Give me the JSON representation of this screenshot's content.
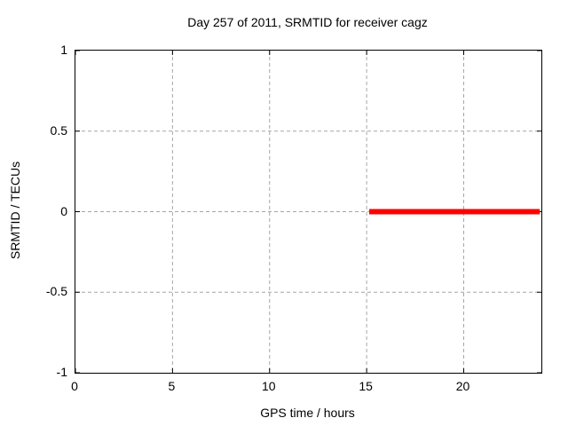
{
  "page": {
    "background": "#ffffff"
  },
  "chart_data": {
    "type": "line",
    "title": "Day 257 of 2011, SRMTID for receiver cagz",
    "xlabel": "GPS time / hours",
    "ylabel": "SRMTID / TECUs",
    "xlim": [
      0,
      24
    ],
    "ylim": [
      -1,
      1
    ],
    "xticks": {
      "values": [
        0,
        5,
        10,
        15,
        20
      ],
      "labels": [
        "0",
        "5",
        "10",
        "15",
        "20"
      ]
    },
    "yticks": {
      "values": [
        -1,
        -0.5,
        0,
        0.5,
        1
      ],
      "labels": [
        "-1",
        "-0.5",
        "0",
        "0.5",
        "1"
      ]
    },
    "grid": true,
    "legend": "none",
    "colors": {
      "border": "#000000",
      "grid": "#a6a6a6",
      "background": "#ffffff",
      "text": "#000000"
    },
    "series": [
      {
        "name": "SRMTID",
        "type": "line",
        "color": "#ff0000",
        "linewidth": 6,
        "x": [
          15.13,
          23.92
        ],
        "y": [
          0,
          0
        ]
      }
    ]
  }
}
